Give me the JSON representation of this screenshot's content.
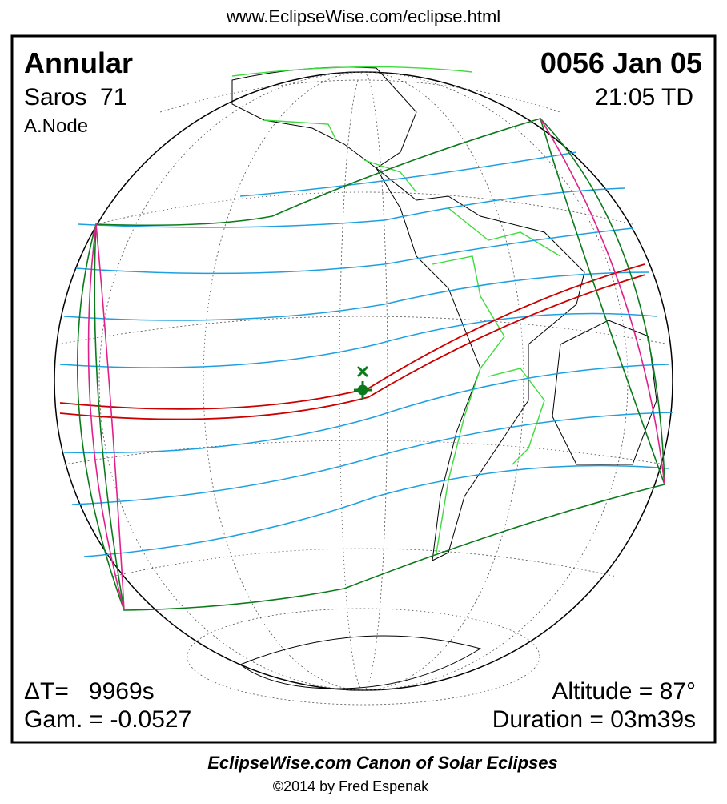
{
  "header": {
    "url": "www.EclipseWise.com/eclipse.html"
  },
  "panel": {
    "type": "Annular",
    "date": "0056 Jan 05",
    "saros": "Saros  71",
    "time": "21:05 TD",
    "node": "A.Node",
    "delta_t": "ΔT=   9969s",
    "gamma": "Gam. = -0.0527",
    "altitude": "Altitude = 87°",
    "duration": "Duration = 03m39s"
  },
  "footer": {
    "title": "EclipseWise.com Canon of Solar Eclipses",
    "credit": "©2014 by Fred Espenak"
  }
}
